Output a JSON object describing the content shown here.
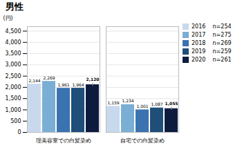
{
  "chart_data": {
    "type": "bar",
    "title": "男性",
    "ylabel": "(円)",
    "categories": [
      "理美容室での白髪染め",
      "自宅での白髪染め"
    ],
    "series": [
      {
        "name": "2016    n=254",
        "color": "#c8d9ed",
        "values": [
          2144,
          1159
        ],
        "value_labels": [
          "2,144",
          "1,159"
        ]
      },
      {
        "name": "2017    n=275",
        "color": "#7aaed4",
        "values": [
          2269,
          1234
        ],
        "value_labels": [
          "2,269",
          "1,234"
        ]
      },
      {
        "name": "2018    n=269",
        "color": "#3b72b0",
        "values": [
          1961,
          1001
        ],
        "value_labels": [
          "1,961",
          "1,001"
        ]
      },
      {
        "name": "2019    n=259",
        "color": "#1f4e79",
        "values": [
          1964,
          1087
        ],
        "value_labels": [
          "1,964",
          "1,087"
        ]
      },
      {
        "name": "2020    n=261",
        "color": "#0d1b3e",
        "values": [
          2120,
          1055
        ],
        "value_labels": [
          "2,120",
          "1,055"
        ],
        "error": [
          70,
          70
        ]
      }
    ],
    "ylim": [
      0,
      4700
    ],
    "yticks": [
      0,
      500,
      {
        "value": 1000,
        "label": "1,000"
      },
      {
        "value": 1500,
        "label": "1,500"
      },
      {
        "value": 2000,
        "label": "2,000"
      },
      {
        "value": 2500,
        "label": "2,500"
      },
      {
        "value": 3000,
        "label": "3,000"
      },
      {
        "value": 3500,
        "label": "3,500"
      },
      {
        "value": 4000,
        "label": "4,000"
      },
      {
        "value": 4500,
        "label": "4,500"
      }
    ],
    "grid": true,
    "legend": "upper right",
    "data_labels": true
  }
}
